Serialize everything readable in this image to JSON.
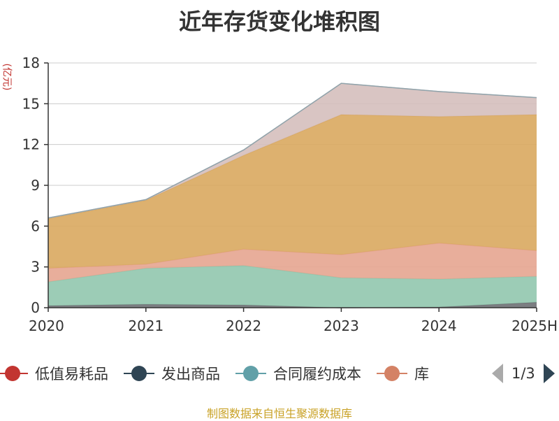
{
  "chart_data": {
    "type": "area",
    "stacked": true,
    "title": "近年存货变化堆积图",
    "ylabel": "(亿元)",
    "xlabel": "",
    "categories": [
      "2020",
      "2021",
      "2022",
      "2023",
      "2024",
      "2025H"
    ],
    "ylim": [
      0,
      18
    ],
    "yticks": [
      0,
      3,
      6,
      9,
      12,
      15,
      18
    ],
    "grid": true,
    "series": [
      {
        "name": "",
        "color": "#6e7074",
        "values": [
          0.15,
          0.25,
          0.2,
          0.0,
          0.05,
          0.4
        ]
      },
      {
        "name": "合同履约成本",
        "color": "#91c7ae",
        "values": [
          1.75,
          2.65,
          2.9,
          2.2,
          2.05,
          1.9
        ]
      },
      {
        "name": "库",
        "color": "#e5a590",
        "values": [
          1.0,
          0.3,
          1.2,
          1.7,
          2.65,
          1.9
        ]
      },
      {
        "name": "",
        "color": "#d9a85f",
        "values": [
          3.65,
          4.7,
          6.9,
          10.3,
          9.3,
          10.0
        ]
      },
      {
        "name": "",
        "color": "#d5bfbc",
        "values": [
          0.05,
          0.05,
          0.4,
          2.3,
          1.85,
          1.25
        ]
      },
      {
        "name": "",
        "color": "#8fa3ab",
        "values": [
          0.0,
          0.0,
          0.0,
          0.0,
          0.0,
          0.0
        ]
      }
    ]
  },
  "legend": {
    "items": [
      {
        "label": "低值易耗品",
        "color": "#c23531"
      },
      {
        "label": "发出商品",
        "color": "#2f4554"
      },
      {
        "label": "合同履约成本",
        "color": "#61a0a8"
      },
      {
        "label": "库",
        "color": "#d48265"
      }
    ],
    "page": "1/3"
  },
  "source": "制图数据来自恒生聚源数据库"
}
